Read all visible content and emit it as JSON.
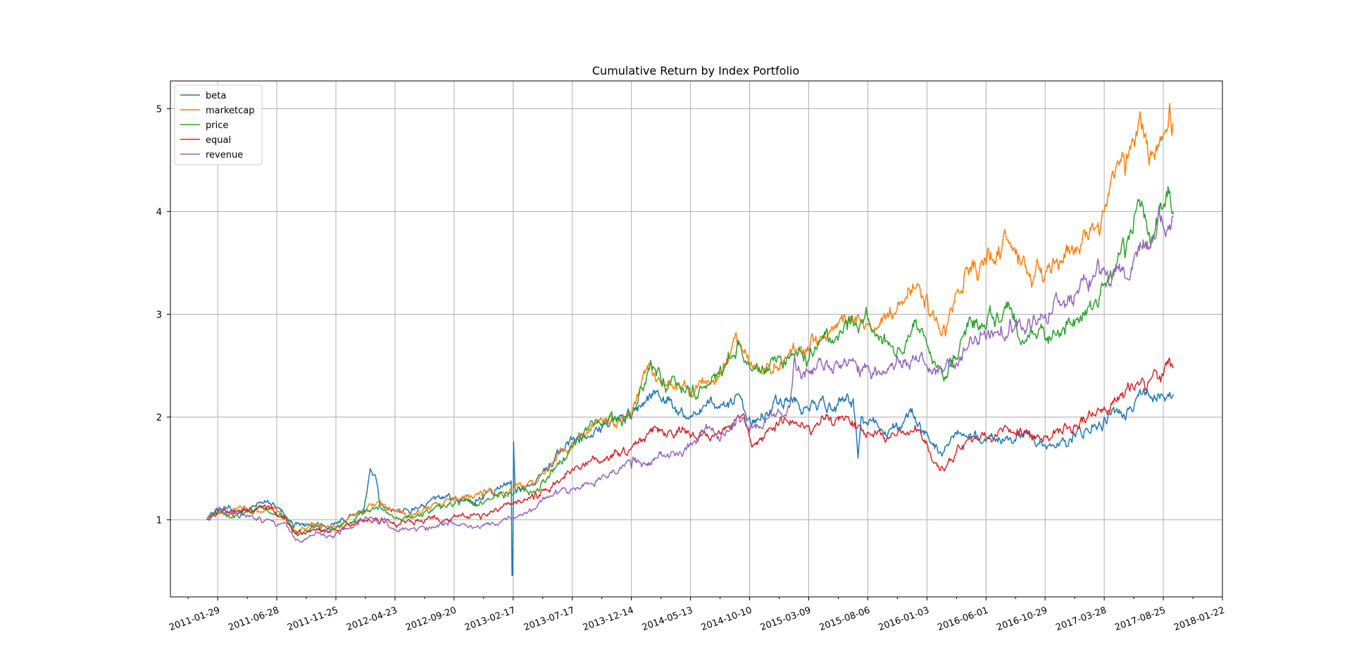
{
  "chart_data": {
    "type": "line",
    "title": "Cumulative Return by Index Portfolio",
    "xlabel": "",
    "ylabel": "",
    "x_tick_labels": [
      "2011-01-29",
      "2011-06-28",
      "2011-11-25",
      "2012-04-23",
      "2012-09-20",
      "2013-02-17",
      "2013-07-17",
      "2013-12-14",
      "2014-05-13",
      "2014-10-10",
      "2015-03-09",
      "2015-08-06",
      "2016-01-03",
      "2016-06-01",
      "2016-10-29",
      "2017-03-28",
      "2017-08-25",
      "2018-01-22"
    ],
    "xlim": [
      "2010-10-01",
      "2018-01-22"
    ],
    "y_ticks": [
      1,
      2,
      3,
      4,
      5
    ],
    "ylim": [
      0.25,
      5.27
    ],
    "grid": true,
    "legend": "upper left",
    "series": [
      {
        "name": "beta",
        "color": "#1f77b4",
        "points": [
          [
            "2011-01-01",
            1.0
          ],
          [
            "2011-01-29",
            1.08
          ],
          [
            "2011-04-01",
            1.1
          ],
          [
            "2011-05-20",
            1.17
          ],
          [
            "2011-07-01",
            1.12
          ],
          [
            "2011-08-10",
            0.92
          ],
          [
            "2011-10-01",
            0.95
          ],
          [
            "2011-11-25",
            0.97
          ],
          [
            "2012-01-10",
            1.05
          ],
          [
            "2012-02-05",
            1.12
          ],
          [
            "2012-02-20",
            1.5
          ],
          [
            "2012-03-05",
            1.42
          ],
          [
            "2012-03-15",
            1.15
          ],
          [
            "2012-04-23",
            1.08
          ],
          [
            "2012-06-01",
            1.06
          ],
          [
            "2012-07-20",
            1.18
          ],
          [
            "2012-09-20",
            1.2
          ],
          [
            "2012-11-15",
            1.2
          ],
          [
            "2013-01-25",
            1.36
          ],
          [
            "2013-02-12",
            1.38
          ],
          [
            "2013-02-14",
            0.46
          ],
          [
            "2013-02-16",
            0.46
          ],
          [
            "2013-02-18",
            1.76
          ],
          [
            "2013-02-22",
            1.28
          ],
          [
            "2013-04-10",
            1.35
          ],
          [
            "2013-06-01",
            1.58
          ],
          [
            "2013-07-17",
            1.78
          ],
          [
            "2013-09-15",
            1.9
          ],
          [
            "2013-12-14",
            2.0
          ],
          [
            "2014-02-15",
            2.25
          ],
          [
            "2014-05-13",
            2.0
          ],
          [
            "2014-08-01",
            2.12
          ],
          [
            "2014-09-15",
            2.2
          ],
          [
            "2014-10-10",
            2.0
          ],
          [
            "2015-01-15",
            2.15
          ],
          [
            "2015-03-09",
            2.08
          ],
          [
            "2015-05-20",
            2.12
          ],
          [
            "2015-06-30",
            2.18
          ],
          [
            "2015-07-12",
            1.6
          ],
          [
            "2015-07-20",
            2.0
          ],
          [
            "2015-08-06",
            1.92
          ],
          [
            "2015-10-01",
            1.88
          ],
          [
            "2015-12-15",
            1.95
          ],
          [
            "2016-01-03",
            1.85
          ],
          [
            "2016-02-10",
            1.62
          ],
          [
            "2016-04-01",
            1.82
          ],
          [
            "2016-06-01",
            1.76
          ],
          [
            "2016-08-01",
            1.8
          ],
          [
            "2016-10-29",
            1.73
          ],
          [
            "2017-01-10",
            1.85
          ],
          [
            "2017-03-28",
            2.0
          ],
          [
            "2017-06-01",
            2.1
          ],
          [
            "2017-07-01",
            2.22
          ],
          [
            "2017-08-25",
            2.2
          ],
          [
            "2017-09-20",
            2.22
          ]
        ]
      },
      {
        "name": "marketcap",
        "color": "#ff7f0e",
        "points": [
          [
            "2011-01-01",
            1.0
          ],
          [
            "2011-01-29",
            1.07
          ],
          [
            "2011-04-01",
            1.1
          ],
          [
            "2011-06-01",
            1.12
          ],
          [
            "2011-07-20",
            1.05
          ],
          [
            "2011-08-15",
            0.9
          ],
          [
            "2011-10-01",
            0.95
          ],
          [
            "2011-11-25",
            0.93
          ],
          [
            "2012-02-01",
            1.08
          ],
          [
            "2012-03-20",
            1.14
          ],
          [
            "2012-04-23",
            1.08
          ],
          [
            "2012-06-10",
            1.06
          ],
          [
            "2012-09-20",
            1.2
          ],
          [
            "2012-12-01",
            1.22
          ],
          [
            "2013-02-17",
            1.3
          ],
          [
            "2013-04-10",
            1.33
          ],
          [
            "2013-07-17",
            1.75
          ],
          [
            "2013-09-15",
            1.95
          ],
          [
            "2013-12-14",
            2.0
          ],
          [
            "2014-02-01",
            2.55
          ],
          [
            "2014-03-01",
            2.35
          ],
          [
            "2014-05-13",
            2.2
          ],
          [
            "2014-08-01",
            2.4
          ],
          [
            "2014-09-10",
            2.7
          ],
          [
            "2014-10-10",
            2.5
          ],
          [
            "2015-01-15",
            2.6
          ],
          [
            "2015-03-09",
            2.65
          ],
          [
            "2015-06-15",
            2.9
          ],
          [
            "2015-08-06",
            2.9
          ],
          [
            "2015-10-15",
            3.0
          ],
          [
            "2015-12-10",
            3.3
          ],
          [
            "2016-01-03",
            3.2
          ],
          [
            "2016-02-15",
            2.9
          ],
          [
            "2016-04-10",
            3.45
          ],
          [
            "2016-06-01",
            3.48
          ],
          [
            "2016-08-01",
            3.7
          ],
          [
            "2016-09-15",
            3.4
          ],
          [
            "2016-10-29",
            3.38
          ],
          [
            "2017-01-15",
            3.6
          ],
          [
            "2017-03-28",
            4.0
          ],
          [
            "2017-05-20",
            4.35
          ],
          [
            "2017-07-01",
            4.8
          ],
          [
            "2017-07-20",
            4.45
          ],
          [
            "2017-08-25",
            4.75
          ],
          [
            "2017-09-10",
            5.05
          ],
          [
            "2017-09-20",
            4.85
          ]
        ]
      },
      {
        "name": "price",
        "color": "#2ca02c",
        "points": [
          [
            "2011-01-01",
            1.0
          ],
          [
            "2011-01-29",
            1.07
          ],
          [
            "2011-04-01",
            1.08
          ],
          [
            "2011-06-01",
            1.1
          ],
          [
            "2011-07-20",
            1.04
          ],
          [
            "2011-08-15",
            0.88
          ],
          [
            "2011-10-01",
            0.92
          ],
          [
            "2011-11-25",
            0.92
          ],
          [
            "2012-02-01",
            1.05
          ],
          [
            "2012-03-20",
            1.1
          ],
          [
            "2012-04-23",
            1.02
          ],
          [
            "2012-06-10",
            1.02
          ],
          [
            "2012-09-20",
            1.15
          ],
          [
            "2012-12-01",
            1.15
          ],
          [
            "2013-02-17",
            1.25
          ],
          [
            "2013-04-10",
            1.28
          ],
          [
            "2013-07-17",
            1.7
          ],
          [
            "2013-09-15",
            1.98
          ],
          [
            "2013-12-14",
            1.98
          ],
          [
            "2014-02-01",
            2.55
          ],
          [
            "2014-03-01",
            2.3
          ],
          [
            "2014-05-13",
            2.2
          ],
          [
            "2014-08-01",
            2.4
          ],
          [
            "2014-09-10",
            2.75
          ],
          [
            "2014-10-10",
            2.5
          ],
          [
            "2015-01-15",
            2.6
          ],
          [
            "2015-03-09",
            2.55
          ],
          [
            "2015-06-15",
            2.85
          ],
          [
            "2015-08-06",
            2.95
          ],
          [
            "2015-10-15",
            2.6
          ],
          [
            "2015-12-10",
            2.85
          ],
          [
            "2016-01-03",
            2.7
          ],
          [
            "2016-02-15",
            2.35
          ],
          [
            "2016-04-10",
            2.8
          ],
          [
            "2016-06-01",
            2.85
          ],
          [
            "2016-08-01",
            3.05
          ],
          [
            "2016-09-15",
            2.8
          ],
          [
            "2016-10-29",
            2.75
          ],
          [
            "2017-01-15",
            2.95
          ],
          [
            "2017-03-28",
            3.3
          ],
          [
            "2017-05-20",
            3.55
          ],
          [
            "2017-07-01",
            4.1
          ],
          [
            "2017-07-20",
            3.8
          ],
          [
            "2017-08-25",
            4.05
          ],
          [
            "2017-09-10",
            4.2
          ],
          [
            "2017-09-20",
            4.0
          ]
        ]
      },
      {
        "name": "equal",
        "color": "#d62728",
        "points": [
          [
            "2011-01-01",
            1.0
          ],
          [
            "2011-01-29",
            1.06
          ],
          [
            "2011-04-01",
            1.08
          ],
          [
            "2011-06-01",
            1.1
          ],
          [
            "2011-07-20",
            1.03
          ],
          [
            "2011-08-15",
            0.86
          ],
          [
            "2011-10-01",
            0.9
          ],
          [
            "2011-11-25",
            0.9
          ],
          [
            "2012-02-01",
            1.0
          ],
          [
            "2012-03-20",
            1.02
          ],
          [
            "2012-04-23",
            0.95
          ],
          [
            "2012-06-10",
            0.95
          ],
          [
            "2012-09-20",
            1.05
          ],
          [
            "2012-12-01",
            1.05
          ],
          [
            "2013-02-17",
            1.15
          ],
          [
            "2013-04-10",
            1.2
          ],
          [
            "2013-07-17",
            1.5
          ],
          [
            "2013-09-15",
            1.6
          ],
          [
            "2013-12-14",
            1.7
          ],
          [
            "2014-02-15",
            1.9
          ],
          [
            "2014-05-13",
            1.8
          ],
          [
            "2014-08-01",
            1.85
          ],
          [
            "2014-09-15",
            2.0
          ],
          [
            "2014-10-10",
            1.8
          ],
          [
            "2015-01-15",
            1.95
          ],
          [
            "2015-03-09",
            1.92
          ],
          [
            "2015-06-15",
            2.0
          ],
          [
            "2015-08-06",
            1.85
          ],
          [
            "2015-10-15",
            1.82
          ],
          [
            "2015-12-10",
            1.88
          ],
          [
            "2016-01-03",
            1.75
          ],
          [
            "2016-02-10",
            1.52
          ],
          [
            "2016-04-10",
            1.75
          ],
          [
            "2016-06-01",
            1.8
          ],
          [
            "2016-08-01",
            1.88
          ],
          [
            "2016-10-29",
            1.82
          ],
          [
            "2017-01-15",
            1.92
          ],
          [
            "2017-03-28",
            2.1
          ],
          [
            "2017-06-01",
            2.25
          ],
          [
            "2017-08-25",
            2.4
          ],
          [
            "2017-09-20",
            2.48
          ]
        ]
      },
      {
        "name": "revenue",
        "color": "#9467bd",
        "points": [
          [
            "2011-01-01",
            1.0
          ],
          [
            "2011-01-29",
            1.1
          ],
          [
            "2011-04-01",
            1.05
          ],
          [
            "2011-06-01",
            1.0
          ],
          [
            "2011-07-20",
            0.97
          ],
          [
            "2011-08-15",
            0.8
          ],
          [
            "2011-10-01",
            0.85
          ],
          [
            "2011-11-25",
            0.88
          ],
          [
            "2012-02-01",
            0.98
          ],
          [
            "2012-03-20",
            1.0
          ],
          [
            "2012-04-23",
            0.9
          ],
          [
            "2012-06-10",
            0.92
          ],
          [
            "2012-09-20",
            0.96
          ],
          [
            "2012-12-01",
            0.95
          ],
          [
            "2013-02-17",
            1.02
          ],
          [
            "2013-04-10",
            1.1
          ],
          [
            "2013-07-17",
            1.3
          ],
          [
            "2013-09-15",
            1.38
          ],
          [
            "2013-12-14",
            1.5
          ],
          [
            "2014-02-15",
            1.6
          ],
          [
            "2014-05-13",
            1.75
          ],
          [
            "2014-08-01",
            1.85
          ],
          [
            "2014-09-15",
            1.95
          ],
          [
            "2014-10-10",
            1.85
          ],
          [
            "2015-01-15",
            2.1
          ],
          [
            "2015-02-01",
            2.6
          ],
          [
            "2015-03-09",
            2.45
          ],
          [
            "2015-06-15",
            2.5
          ],
          [
            "2015-08-06",
            2.5
          ],
          [
            "2015-10-15",
            2.5
          ],
          [
            "2015-12-10",
            2.55
          ],
          [
            "2016-01-03",
            2.5
          ],
          [
            "2016-02-15",
            2.45
          ],
          [
            "2016-04-10",
            2.65
          ],
          [
            "2016-06-01",
            2.75
          ],
          [
            "2016-08-01",
            2.95
          ],
          [
            "2016-10-29",
            3.0
          ],
          [
            "2017-01-15",
            3.2
          ],
          [
            "2017-03-28",
            3.45
          ],
          [
            "2017-05-20",
            3.35
          ],
          [
            "2017-07-01",
            3.65
          ],
          [
            "2017-08-25",
            3.85
          ],
          [
            "2017-09-20",
            3.95
          ]
        ]
      }
    ]
  }
}
